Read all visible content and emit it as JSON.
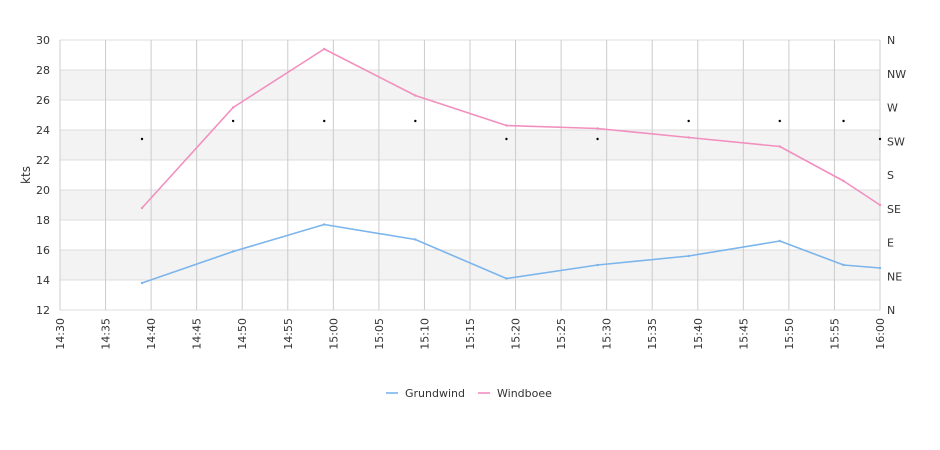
{
  "chart_data": {
    "type": "line",
    "xlabel": "",
    "ylabel": "kts",
    "ylim": [
      12,
      30
    ],
    "y_ticks": [
      "12",
      "14",
      "16",
      "18",
      "20",
      "22",
      "24",
      "26",
      "28",
      "30"
    ],
    "x_ticks": [
      "14:30",
      "14:35",
      "14:40",
      "14:45",
      "14:50",
      "14:55",
      "15:00",
      "15:05",
      "15:10",
      "15:15",
      "15:20",
      "15:25",
      "15:30",
      "15:35",
      "15:40",
      "15:45",
      "15:50",
      "15:55",
      "16:00"
    ],
    "x_range": [
      "14:30",
      "16:00"
    ],
    "y2_ticks": [
      "N",
      "NE",
      "E",
      "SE",
      "S",
      "SW",
      "W",
      "NW",
      "N"
    ],
    "grid": true,
    "legend_position": "bottom-center",
    "series": [
      {
        "name": "Grundwind",
        "color": "#7cb5ec",
        "x": [
          "14:39",
          "14:49",
          "14:59",
          "15:09",
          "15:19",
          "15:29",
          "15:39",
          "15:49",
          "15:56",
          "16:00"
        ],
        "values": [
          13.8,
          15.9,
          17.7,
          16.7,
          14.1,
          15.0,
          15.6,
          16.6,
          15.0,
          14.8
        ]
      },
      {
        "name": "Windboee",
        "color": "#f28fbf",
        "x": [
          "14:39",
          "14:49",
          "14:59",
          "15:09",
          "15:19",
          "15:29",
          "15:39",
          "15:49",
          "15:56",
          "16:00"
        ],
        "values": [
          18.8,
          25.5,
          29.4,
          26.3,
          24.3,
          24.1,
          23.5,
          22.9,
          20.6,
          19.0
        ]
      }
    ],
    "direction_markers": {
      "x": [
        "14:39",
        "14:49",
        "14:59",
        "15:09",
        "15:19",
        "15:29",
        "15:39",
        "15:49",
        "15:56",
        "16:00"
      ],
      "values": [
        23.4,
        24.6,
        24.6,
        24.6,
        23.4,
        23.4,
        24.6,
        24.6,
        24.6,
        23.4
      ]
    }
  }
}
